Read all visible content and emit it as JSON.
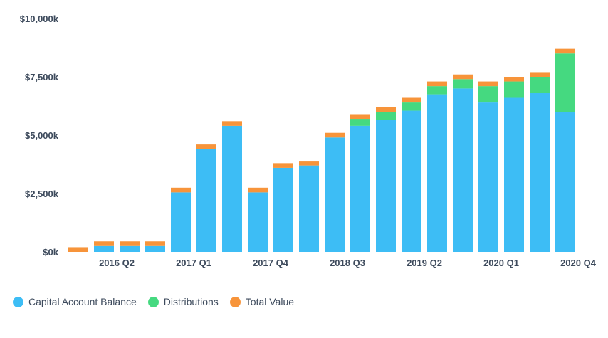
{
  "chart_data": {
    "type": "bar",
    "stacked": true,
    "title": "",
    "xlabel": "",
    "ylabel": "",
    "ylim": [
      0,
      10000
    ],
    "y_ticks": [
      {
        "value": 0,
        "label": "$0k"
      },
      {
        "value": 2500,
        "label": "$2,500k"
      },
      {
        "value": 5000,
        "label": "$5,000k"
      },
      {
        "value": 7500,
        "label": "$7,500k"
      },
      {
        "value": 10000,
        "label": "$10,000k"
      }
    ],
    "categories": [
      "2016 Q1",
      "2016 Q2",
      "2016 Q3",
      "2016 Q4",
      "2017 Q1",
      "2017 Q2",
      "2017 Q3",
      "2017 Q4",
      "2018 Q1",
      "2018 Q2",
      "2018 Q3",
      "2018 Q4",
      "2019 Q1",
      "2019 Q2",
      "2019 Q3",
      "2019 Q4",
      "2020 Q1",
      "2020 Q2",
      "2020 Q3",
      "2020 Q4"
    ],
    "x_tick_labels": [
      {
        "index": 2,
        "label": "2016 Q2"
      },
      {
        "index": 5,
        "label": "2017 Q1"
      },
      {
        "index": 8,
        "label": "2017 Q4"
      },
      {
        "index": 11,
        "label": "2018 Q3"
      },
      {
        "index": 14,
        "label": "2019 Q2"
      },
      {
        "index": 17,
        "label": "2020 Q1"
      },
      {
        "index": 20,
        "label": "2020 Q4"
      }
    ],
    "series": [
      {
        "name": "Capital Account Balance",
        "color": "#3dbdf5",
        "values": [
          0,
          250,
          250,
          250,
          2550,
          4400,
          5400,
          2550,
          3600,
          3700,
          4900,
          5400,
          5650,
          6050,
          6750,
          7000,
          6400,
          6600,
          6800,
          6000
        ]
      },
      {
        "name": "Distributions",
        "color": "#45d980",
        "values": [
          0,
          0,
          0,
          0,
          0,
          0,
          0,
          0,
          0,
          0,
          0,
          300,
          350,
          350,
          350,
          400,
          700,
          700,
          700,
          2500
        ]
      },
      {
        "name": "Total Value",
        "color": "#f7943a",
        "values": [
          200,
          200,
          200,
          200,
          200,
          200,
          200,
          200,
          200,
          200,
          200,
          200,
          200,
          200,
          200,
          200,
          200,
          200,
          200,
          200
        ]
      }
    ],
    "legend": [
      "Capital Account Balance",
      "Distributions",
      "Total Value"
    ],
    "legend_position": "bottom-left",
    "grid": false
  }
}
